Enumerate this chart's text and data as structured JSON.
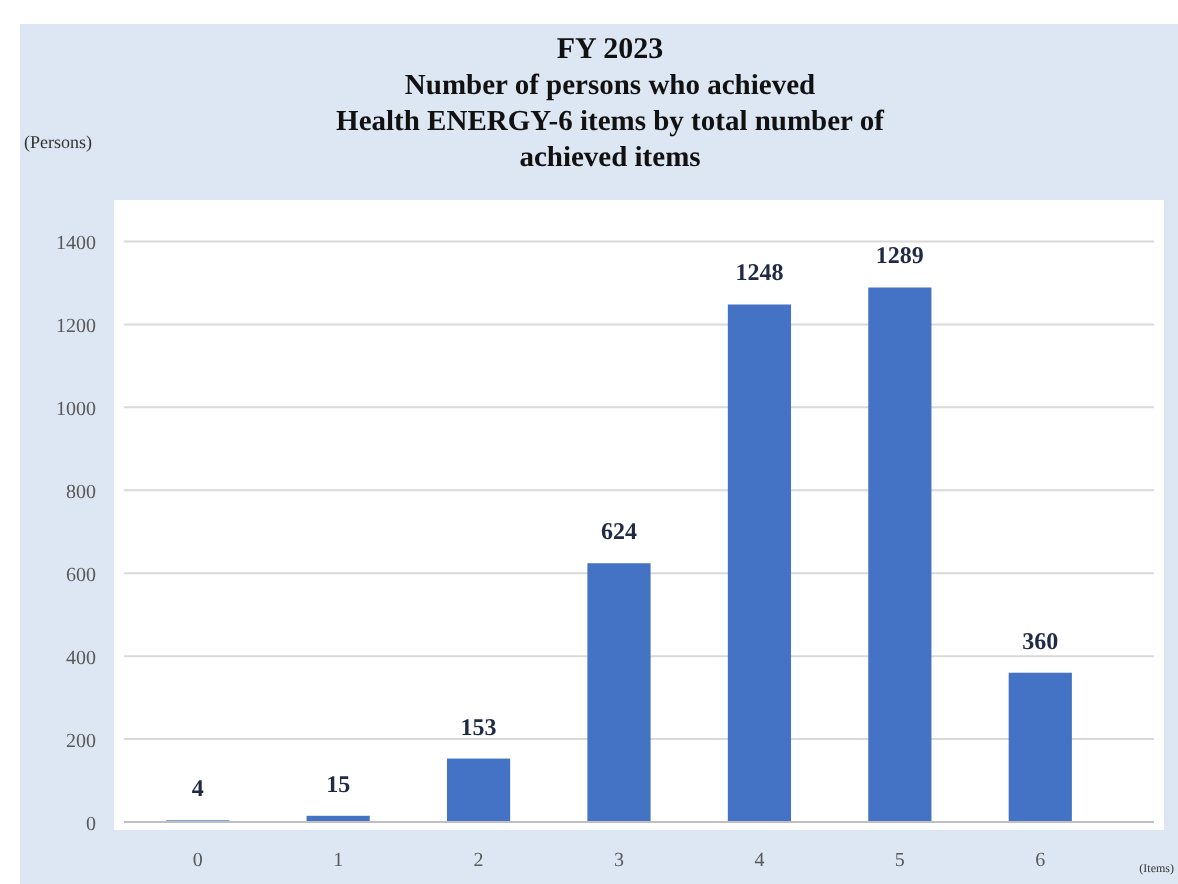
{
  "chart_data": {
    "type": "bar",
    "title": "FY 2023\nNumber of persons who achieved\nHealth ENERGY-6 items by total number of\nachieved items",
    "ylabel": "(Persons)",
    "xlabel": "(Items)",
    "categories": [
      "0",
      "1",
      "2",
      "3",
      "4",
      "5",
      "6"
    ],
    "values": [
      4,
      15,
      153,
      624,
      1248,
      1289,
      360
    ],
    "color": "#4472c4",
    "ylim": [
      0,
      1500
    ],
    "yticks": [
      0,
      200,
      400,
      600,
      800,
      1000,
      1200,
      1400
    ],
    "grid": "y",
    "data_labels": true
  }
}
